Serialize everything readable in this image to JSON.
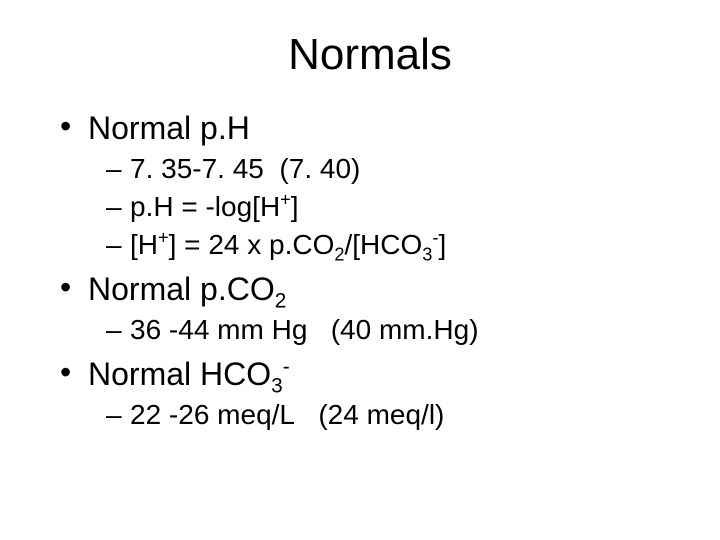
{
  "slide": {
    "title": "Normals",
    "background_color": "#ffffff",
    "text_color": "#000000",
    "title_fontsize": 44,
    "bullet1_fontsize": 32,
    "bullet2_fontsize": 28,
    "font_family": "Arial",
    "sections": [
      {
        "heading_plain": "Normal p.H",
        "heading_html": "Normal p.H",
        "sub": [
          {
            "plain": "7. 35-7. 45  (7. 40)",
            "html": "7. 35-7. 45&nbsp;&nbsp;(7. 40)"
          },
          {
            "plain": "p.H = -log[H+]",
            "html": "p.H = -log[H<sup>+</sup>]"
          },
          {
            "plain": "[H+] = 24 x p.CO2/[HCO3-]",
            "html": "[H<sup>+</sup>] = 24 x p.CO<sub>2</sub>/[HCO<sub>3</sub><sup>-</sup>]"
          }
        ]
      },
      {
        "heading_plain": "Normal p.CO2",
        "heading_html": "Normal p.CO<sub>2</sub>",
        "sub": [
          {
            "plain": "36 -44 mm Hg   (40 mm.Hg)",
            "html": "36 -44 mm Hg&nbsp;&nbsp;&nbsp;(40 mm.Hg)"
          }
        ]
      },
      {
        "heading_plain": "Normal HCO3-",
        "heading_html": "Normal HCO<sub>3</sub><sup>-</sup>",
        "sub": [
          {
            "plain": "22 -26 meq/L   (24 meq/l)",
            "html": "22 -26 meq/L&nbsp;&nbsp;&nbsp;(24 meq/l)"
          }
        ]
      }
    ]
  }
}
